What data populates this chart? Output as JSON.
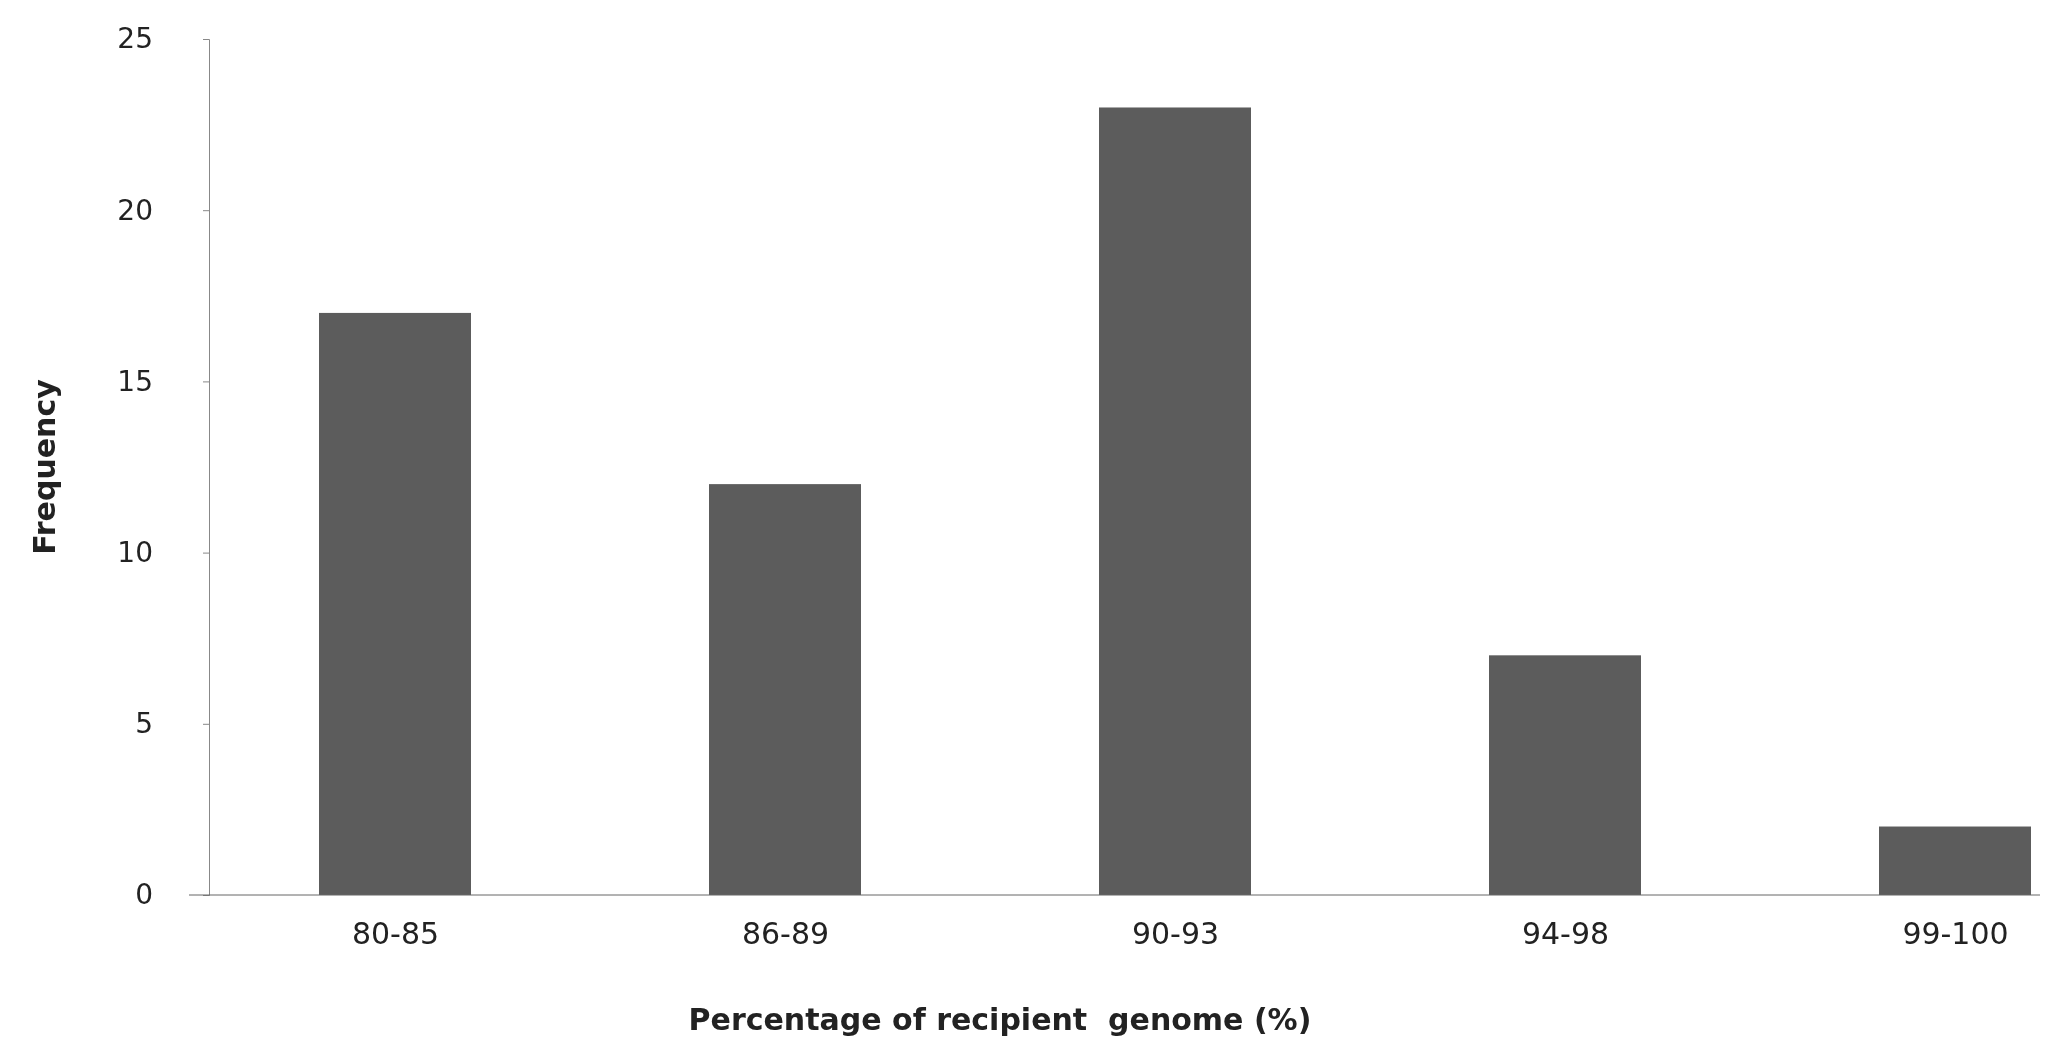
{
  "chart_data": {
    "type": "bar",
    "xlabel": "Percentage of recipient  genome (%)",
    "ylabel": "Frequency",
    "categories": [
      "80-85",
      "86-89",
      "90-93",
      "94-98",
      "99-100"
    ],
    "values": [
      17,
      12,
      23,
      7,
      2
    ],
    "color": "#5c5c5c",
    "ylim": [
      0,
      25
    ],
    "yticks": [
      0,
      5,
      10,
      15,
      20,
      25
    ],
    "grid": false
  }
}
